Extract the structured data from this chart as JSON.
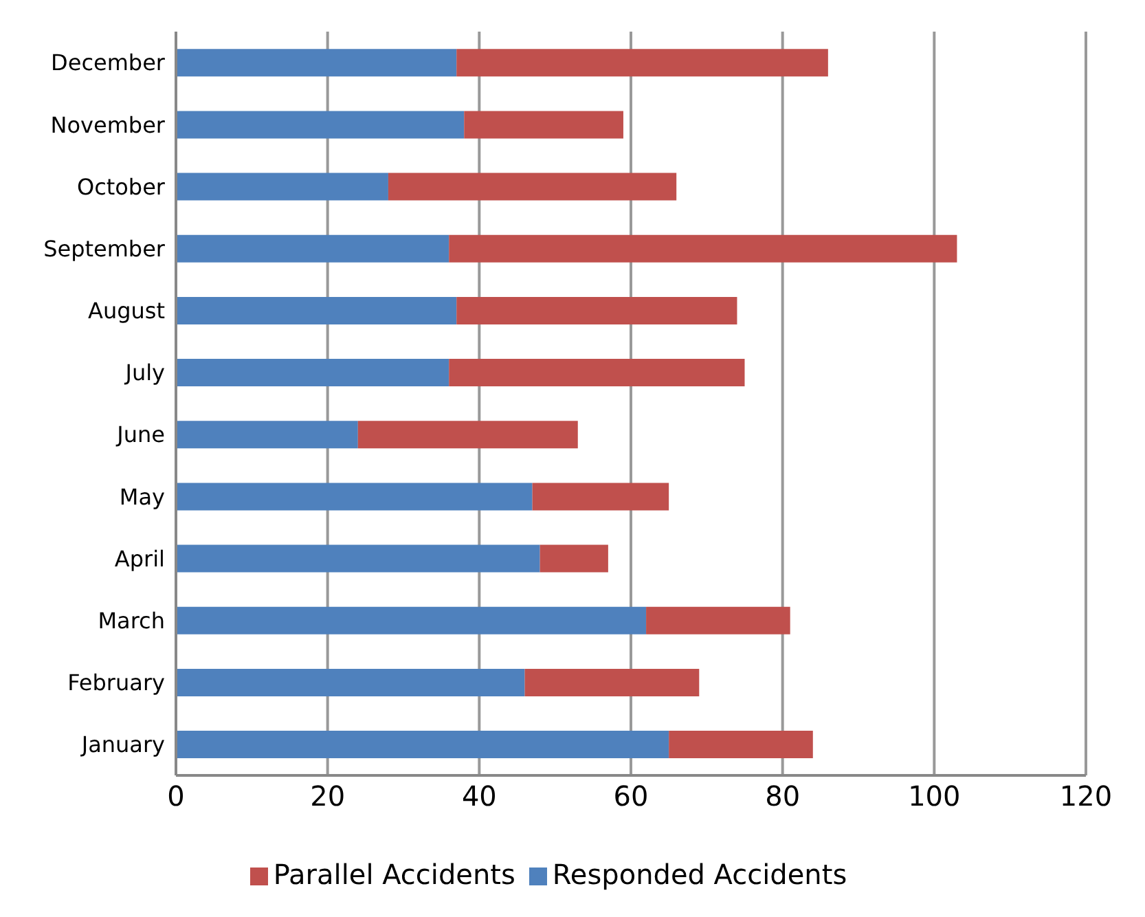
{
  "chart_data": {
    "type": "bar",
    "orientation": "horizontal",
    "stacked": true,
    "categories": [
      "December",
      "November",
      "October",
      "September",
      "August",
      "July",
      "June",
      "May",
      "April",
      "March",
      "February",
      "January"
    ],
    "series": [
      {
        "name": "Responded Accidents",
        "color": "#4f81bd",
        "values": [
          37,
          38,
          28,
          36,
          37,
          36,
          24,
          47,
          48,
          62,
          46,
          65
        ]
      },
      {
        "name": "Parallel Accidents",
        "color": "#c0504d",
        "values": [
          49,
          21,
          38,
          67,
          37,
          39,
          29,
          18,
          9,
          19,
          23,
          19
        ]
      }
    ],
    "xlim": [
      0,
      120
    ],
    "xticks": [
      0,
      20,
      40,
      60,
      80,
      100,
      120
    ],
    "grid": "x",
    "legend": "bottom"
  }
}
